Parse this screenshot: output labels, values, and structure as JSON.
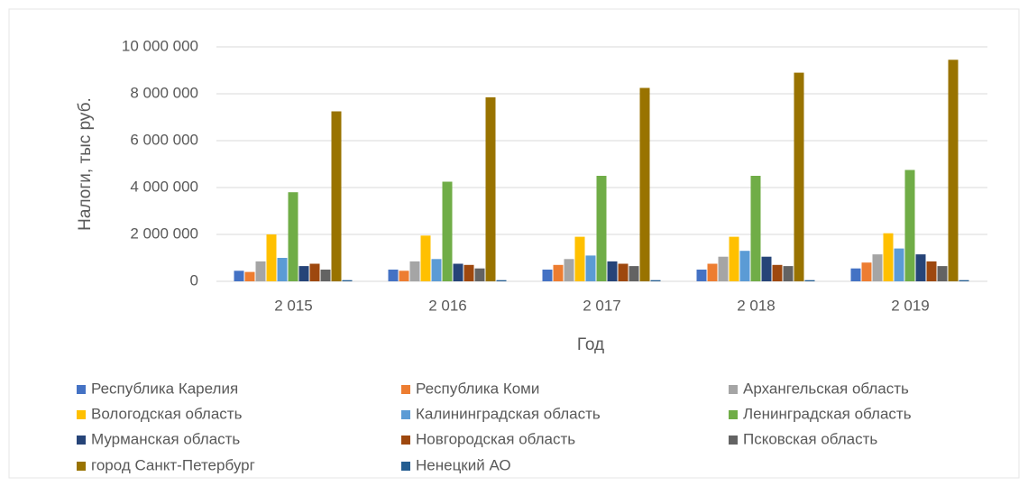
{
  "chart_data": {
    "type": "bar",
    "y_label": "Налоги, тыс руб.",
    "x_label": "Год",
    "categories": [
      "2 015",
      "2 016",
      "2 017",
      "2 018",
      "2 019"
    ],
    "ylim": [
      0,
      10000000
    ],
    "yticks": [
      0,
      {
        "value": 2000000,
        "label": "2 000 000"
      },
      {
        "value": 4000000,
        "label": "4 000 000"
      },
      {
        "value": 6000000,
        "label": "6 000 000"
      },
      {
        "value": 8000000,
        "label": "8 000 000"
      },
      {
        "value": 10000000,
        "label": "10 000 000"
      }
    ],
    "grid": true,
    "legend": "bottom",
    "series": [
      {
        "name": "Республика Карелия",
        "color": "#4472c4",
        "values": [
          450000,
          500000,
          500000,
          500000,
          550000
        ]
      },
      {
        "name": "Республика Коми",
        "color": "#ed7d31",
        "values": [
          400000,
          450000,
          700000,
          750000,
          800000
        ]
      },
      {
        "name": "Архангельская область",
        "color": "#a5a5a5",
        "values": [
          850000,
          850000,
          950000,
          1050000,
          1150000
        ]
      },
      {
        "name": "Вологодская область",
        "color": "#ffc000",
        "values": [
          2000000,
          1950000,
          1900000,
          1900000,
          2050000
        ]
      },
      {
        "name": "Калининградская область",
        "color": "#5b9bd5",
        "values": [
          1000000,
          950000,
          1100000,
          1300000,
          1400000
        ]
      },
      {
        "name": "Ленинградская область",
        "color": "#70ad47",
        "values": [
          3800000,
          4250000,
          4500000,
          4500000,
          4750000
        ]
      },
      {
        "name": "Мурманская область",
        "color": "#264478",
        "values": [
          650000,
          750000,
          850000,
          1050000,
          1150000
        ]
      },
      {
        "name": "Новгородская область",
        "color": "#9e480e",
        "values": [
          750000,
          700000,
          750000,
          700000,
          850000
        ]
      },
      {
        "name": "Псковская область",
        "color": "#636363",
        "values": [
          500000,
          550000,
          650000,
          650000,
          650000
        ]
      },
      {
        "name": "город Санкт-Петербург",
        "color": "#997300",
        "values": [
          7250000,
          7850000,
          8250000,
          8900000,
          9450000
        ]
      },
      {
        "name": "Ненецкий АО",
        "color": "#255e91",
        "values": [
          50000,
          50000,
          50000,
          50000,
          50000
        ]
      }
    ]
  }
}
